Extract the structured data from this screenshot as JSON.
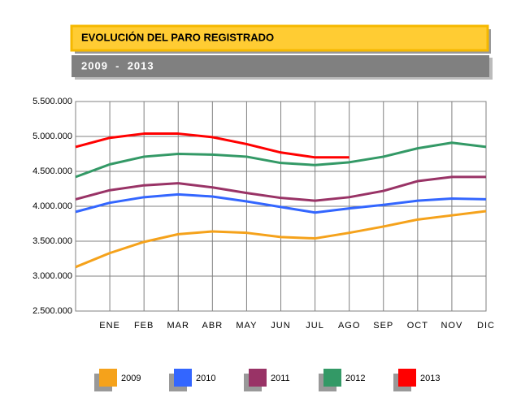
{
  "chart_data": {
    "type": "line",
    "title": "EVOLUCIÓN DEL PARO REGISTRADO",
    "subtitle": "2009  -  2013",
    "categories": [
      null,
      "ENE",
      "FEB",
      "MAR",
      "ABR",
      "MAY",
      "JUN",
      "JUL",
      "AGO",
      "SEP",
      "OCT",
      "NOV",
      "DIC"
    ],
    "series": [
      {
        "name": "2009",
        "color": "#f5a21b",
        "values": [
          3130000,
          3330000,
          3490000,
          3600000,
          3640000,
          3620000,
          3560000,
          3540000,
          3620000,
          3710000,
          3810000,
          3870000,
          3930000
        ]
      },
      {
        "name": "2010",
        "color": "#3366ff",
        "values": [
          3920000,
          4050000,
          4130000,
          4170000,
          4140000,
          4070000,
          3990000,
          3910000,
          3970000,
          4020000,
          4080000,
          4110000,
          4100000
        ]
      },
      {
        "name": "2011",
        "color": "#993366",
        "values": [
          4100000,
          4230000,
          4300000,
          4330000,
          4270000,
          4190000,
          4120000,
          4080000,
          4130000,
          4220000,
          4360000,
          4420000,
          4420000
        ]
      },
      {
        "name": "2012",
        "color": "#339966",
        "values": [
          4420000,
          4600000,
          4710000,
          4750000,
          4740000,
          4710000,
          4620000,
          4590000,
          4630000,
          4710000,
          4830000,
          4910000,
          4850000
        ]
      },
      {
        "name": "2013",
        "color": "#ff0000",
        "values": [
          4850000,
          4980000,
          5040000,
          5040000,
          4990000,
          4890000,
          4770000,
          4700000,
          4700000,
          null,
          null,
          null,
          null
        ]
      }
    ],
    "ylim": [
      2500000,
      5500000
    ],
    "yticks": [
      {
        "value": 2500000,
        "label": "2.500.000"
      },
      {
        "value": 3000000,
        "label": "3.000.000"
      },
      {
        "value": 3500000,
        "label": "3.500.000"
      },
      {
        "value": 4000000,
        "label": "4.000.000"
      },
      {
        "value": 4500000,
        "label": "4.500.000"
      },
      {
        "value": 5000000,
        "label": "5.000.000"
      },
      {
        "value": 5500000,
        "label": "5.500.000"
      }
    ],
    "grid": true,
    "legend": "bottom"
  }
}
